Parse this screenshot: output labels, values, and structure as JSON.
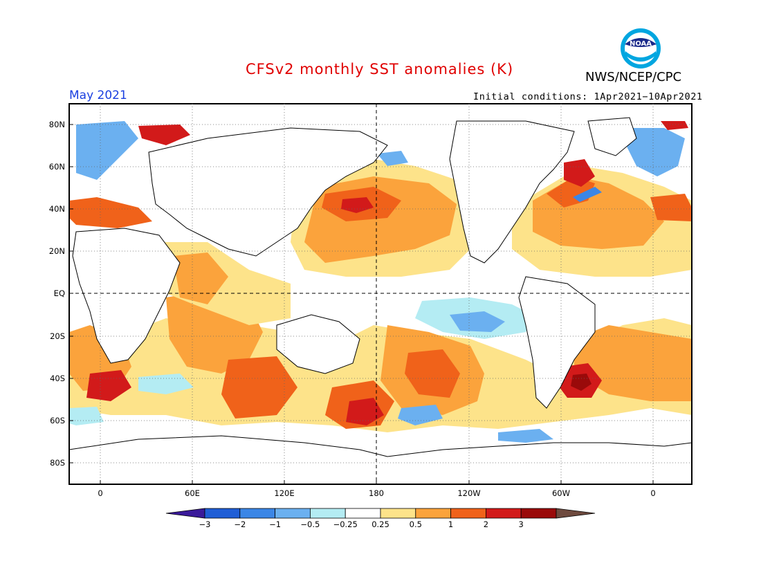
{
  "header": {
    "title": "CFSv2 monthly SST anomalies (K)",
    "agency": "NWS/NCEP/CPC",
    "month": "May 2021",
    "initial_conditions": "Initial conditions: 1Apr2021−10Apr2021",
    "logo_text": "NOAA"
  },
  "map": {
    "lat_labels": [
      "80N",
      "60N",
      "40N",
      "20N",
      "EQ",
      "20S",
      "40S",
      "60S",
      "80S"
    ],
    "lon_labels": [
      "0",
      "60E",
      "120E",
      "180",
      "120W",
      "60W",
      "0"
    ]
  },
  "colorbar": {
    "labels": [
      "−3",
      "−2",
      "−1",
      "−0.5",
      "−0.25",
      "0.25",
      "0.5",
      "1",
      "2",
      "3"
    ],
    "colors": [
      "#3a1a9a",
      "#1f5ed6",
      "#3b86e6",
      "#6bb0f0",
      "#b4ecf3",
      "#ffffff",
      "#fde38a",
      "#fba33c",
      "#f0621a",
      "#d21a1a",
      "#9a0a0a",
      "#6e4a3e"
    ]
  },
  "colors": {
    "title": "#e00000",
    "month": "#1a3fe0",
    "warm_weak": "#fde38a",
    "warm_mid": "#fba33c",
    "warm_strong": "#f0621a",
    "hot": "#d21a1a",
    "very_hot": "#9a0a0a",
    "cold_weak": "#b4ecf3",
    "cold_mid": "#6bb0f0",
    "cold_strong": "#3b86e6"
  }
}
